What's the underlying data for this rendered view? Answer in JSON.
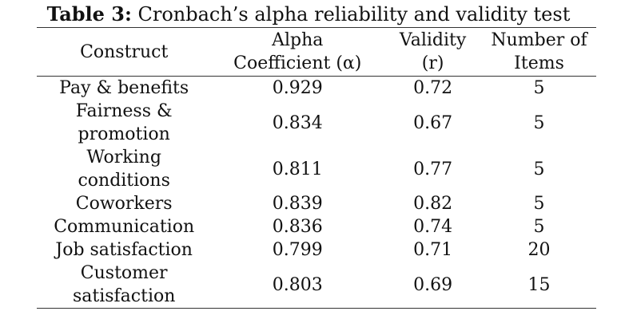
{
  "caption": {
    "label": "Table 3:",
    "text": " Cronbach’s alpha reliability and validity test"
  },
  "table": {
    "headers": {
      "construct": "Construct",
      "alpha_line1": "Alpha",
      "alpha_line2": "Coefficient (α)",
      "validity_line1": "Validity",
      "validity_line2": "(r)",
      "items_line1": "Number of",
      "items_line2": "Items"
    },
    "rows": [
      {
        "construct": [
          "Pay & benefits"
        ],
        "alpha": "0.929",
        "validity": "0.72",
        "items": "5"
      },
      {
        "construct": [
          "Fairness &",
          "promotion"
        ],
        "alpha": "0.834",
        "validity": "0.67",
        "items": "5"
      },
      {
        "construct": [
          "Working",
          "conditions"
        ],
        "alpha": "0.811",
        "validity": "0.77",
        "items": "5"
      },
      {
        "construct": [
          "Coworkers"
        ],
        "alpha": "0.839",
        "validity": "0.82",
        "items": "5"
      },
      {
        "construct": [
          "Communication"
        ],
        "alpha": "0.836",
        "validity": "0.74",
        "items": "5"
      },
      {
        "construct": [
          "Job satisfaction"
        ],
        "alpha": "0.799",
        "validity": "0.71",
        "items": "20"
      },
      {
        "construct": [
          "Customer",
          "satisfaction"
        ],
        "alpha": "0.803",
        "validity": "0.69",
        "items": "15"
      }
    ]
  }
}
